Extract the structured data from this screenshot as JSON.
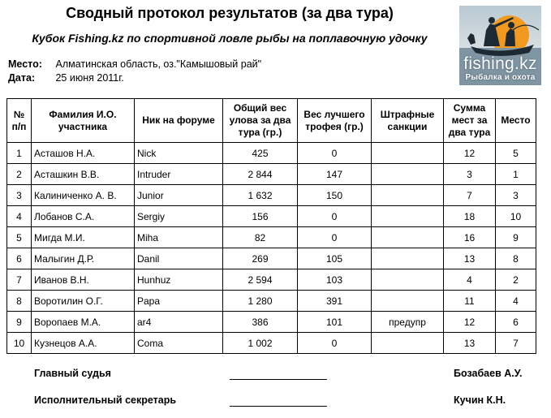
{
  "title": "Сводный протокол результатов (за два тура)",
  "subtitle": "Кубок Fishing.kz по спортивной ловле рыбы на поплавочную удочку",
  "place_label": "Место:",
  "place_value": "Алматинская область, оз.\"Камышовый рай\"",
  "date_label": "Дата:",
  "date_value": "25 июня 2011г.",
  "logo": {
    "word": "fishing.kz",
    "tagline": "Рыбалка и охота"
  },
  "table": {
    "headers": {
      "num": "№ п/п",
      "name": "Фамилия И.О. участника",
      "nick": "Ник на форуме",
      "total": "Общий вес улова за два тура (гр.)",
      "best": "Вес лучшего трофея (гр.)",
      "penalty": "Штрафные санкции",
      "sum": "Сумма мест за два тура",
      "place": "Место"
    },
    "rows": [
      {
        "num": "1",
        "name": "Асташов Н.А.",
        "nick": "Nick",
        "total": "425",
        "best": "0",
        "penalty": "",
        "sum": "12",
        "place": "5"
      },
      {
        "num": "2",
        "name": "Асташкин В.В.",
        "nick": "Intruder",
        "total": "2 844",
        "best": "147",
        "penalty": "",
        "sum": "3",
        "place": "1"
      },
      {
        "num": "3",
        "name": "Калиниченко А. В.",
        "nick": "Junior",
        "total": "1 632",
        "best": "150",
        "penalty": "",
        "sum": "7",
        "place": "3"
      },
      {
        "num": "4",
        "name": "Лобанов С.А.",
        "nick": "Sergiy",
        "total": "156",
        "best": "0",
        "penalty": "",
        "sum": "18",
        "place": "10"
      },
      {
        "num": "5",
        "name": "Мигда М.И.",
        "nick": "Miha",
        "total": "82",
        "best": "0",
        "penalty": "",
        "sum": "16",
        "place": "9"
      },
      {
        "num": "6",
        "name": "Малыгин Д.Р.",
        "nick": "Danil",
        "total": "269",
        "best": "105",
        "penalty": "",
        "sum": "13",
        "place": "8"
      },
      {
        "num": "7",
        "name": "Иванов В.Н.",
        "nick": "Hunhuz",
        "total": "2 594",
        "best": "103",
        "penalty": "",
        "sum": "4",
        "place": "2"
      },
      {
        "num": "8",
        "name": "Воротилин О.Г.",
        "nick": "Papa",
        "total": "1 280",
        "best": "391",
        "penalty": "",
        "sum": "11",
        "place": "4"
      },
      {
        "num": "9",
        "name": "Воропаев М.А.",
        "nick": "ar4",
        "total": "386",
        "best": "101",
        "penalty": "предупр",
        "sum": "12",
        "place": "6"
      },
      {
        "num": "10",
        "name": "Кузнецов А.А.",
        "nick": "Coma",
        "total": "1 002",
        "best": "0",
        "penalty": "",
        "sum": "13",
        "place": "7"
      }
    ]
  },
  "signatures": {
    "judge_label": "Главный судья",
    "judge_name": "Бозабаев А.У.",
    "secretary_label": "Исполнительный секретарь",
    "secretary_name": "Кучин К.Н."
  }
}
